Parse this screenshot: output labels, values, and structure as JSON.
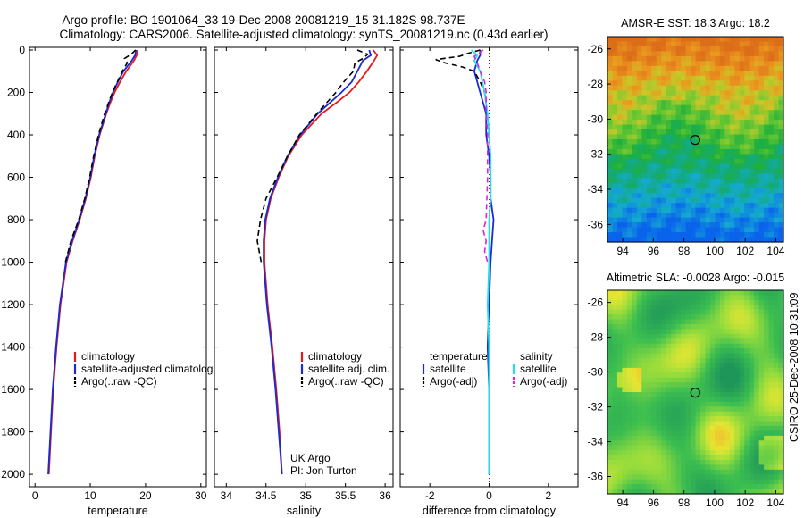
{
  "title_line1": "Argo profile: BO 1901064_33 19-Dec-2008 20081219_15 31.182S 98.737E",
  "title_line2": "Climatology: CARS2006. Satellite-adjusted climatology: synTS_20081219.nc (0.43d earlier)",
  "side_label": "CSIRO 25-Dec-2008 10:31:09",
  "colors": {
    "climatology": "#e41a1c",
    "satellite": "#1a2bd6",
    "argo": "#000000",
    "salinity_satellite": "#22e0e8",
    "salinity_argo": "#e020e0"
  },
  "chart_data": [
    {
      "type": "line",
      "xlabel": "temperature",
      "ylabel": "",
      "xlim": [
        -1,
        31
      ],
      "ylim": [
        2050,
        0
      ],
      "xticks": [
        "0",
        "10",
        "20",
        "30"
      ],
      "yticks": [
        "0",
        "200",
        "400",
        "600",
        "800",
        "1000",
        "1200",
        "1400",
        "1600",
        "1800",
        "2000"
      ],
      "legend": [
        "climatology",
        "satellite-adjusted climatolog",
        "Argo(..raw -QC)"
      ],
      "legend_position": "lower-middle",
      "series": [
        {
          "name": "climatology",
          "style": "solid",
          "color_key": "climatology",
          "depth": [
            0,
            25,
            50,
            100,
            150,
            200,
            250,
            300,
            400,
            500,
            600,
            700,
            800,
            900,
            1000,
            1200,
            1400,
            1600,
            1800,
            2000
          ],
          "values": [
            18.6,
            18.4,
            17.9,
            16.5,
            15.4,
            14.4,
            13.6,
            12.9,
            11.7,
            10.8,
            10.1,
            9.2,
            8.1,
            6.8,
            5.7,
            4.6,
            3.9,
            3.3,
            2.9,
            2.5
          ]
        },
        {
          "name": "satellite-adjusted climatology",
          "style": "solid",
          "color_key": "satellite",
          "depth": [
            0,
            25,
            50,
            100,
            150,
            200,
            250,
            300,
            400,
            500,
            600,
            700,
            800,
            900,
            1000,
            1200,
            1400,
            1600,
            1800,
            2000
          ],
          "values": [
            18.3,
            18.1,
            17.5,
            16.0,
            15.0,
            14.1,
            13.4,
            12.8,
            11.6,
            10.7,
            10.0,
            9.1,
            8.0,
            6.7,
            5.6,
            4.5,
            3.8,
            3.2,
            2.8,
            2.4
          ]
        },
        {
          "name": "Argo(..raw -QC)",
          "style": "dashed",
          "color_key": "argo",
          "depth": [
            0,
            20,
            40,
            60,
            100,
            150,
            200,
            300,
            400,
            500,
            600,
            700,
            800,
            900,
            1000
          ],
          "values": [
            18.2,
            17.4,
            16.2,
            16.7,
            15.8,
            14.9,
            14.0,
            12.6,
            11.5,
            10.6,
            9.9,
            9.0,
            7.9,
            6.5,
            5.5
          ]
        }
      ]
    },
    {
      "type": "line",
      "xlabel": "salinity",
      "ylabel": "",
      "xlim": [
        33.85,
        36.1
      ],
      "ylim": [
        2050,
        0
      ],
      "xticks": [
        "34",
        "34.5",
        "35",
        "35.5",
        "36"
      ],
      "legend": [
        "climatology",
        "satellite adj. clim.",
        "Argo(..raw -QC)"
      ],
      "legend_position": "lower-right",
      "annotations": [
        "UK Argo",
        "PI: Jon Turton"
      ],
      "series": [
        {
          "name": "climatology",
          "style": "solid",
          "color_key": "climatology",
          "depth": [
            0,
            25,
            50,
            100,
            150,
            200,
            250,
            300,
            400,
            500,
            600,
            700,
            800,
            900,
            1000,
            1200,
            1400,
            1600,
            1800,
            2000
          ],
          "values": [
            35.85,
            35.9,
            35.86,
            35.77,
            35.67,
            35.55,
            35.38,
            35.2,
            34.95,
            34.78,
            34.66,
            34.56,
            34.5,
            34.48,
            34.48,
            34.52,
            34.58,
            34.63,
            34.67,
            34.7
          ]
        },
        {
          "name": "satellite adj. clim.",
          "style": "solid",
          "color_key": "satellite",
          "depth": [
            0,
            25,
            50,
            100,
            150,
            200,
            250,
            300,
            400,
            500,
            600,
            700,
            800,
            900,
            1000,
            1200,
            1400,
            1600,
            1800,
            2000
          ],
          "values": [
            35.8,
            35.82,
            35.72,
            35.65,
            35.58,
            35.45,
            35.3,
            35.15,
            34.93,
            34.77,
            34.65,
            34.55,
            34.49,
            34.47,
            34.47,
            34.51,
            34.57,
            34.62,
            34.66,
            34.7
          ]
        },
        {
          "name": "Argo(..raw -QC)",
          "style": "dashed",
          "color_key": "argo",
          "depth": [
            0,
            20,
            40,
            60,
            100,
            150,
            200,
            300,
            400,
            500,
            600,
            700,
            800,
            900,
            1000
          ],
          "values": [
            35.65,
            35.78,
            35.72,
            35.62,
            35.6,
            35.48,
            35.38,
            35.14,
            34.92,
            34.77,
            34.64,
            34.5,
            34.43,
            34.39,
            34.44
          ]
        }
      ]
    },
    {
      "type": "line",
      "xlabel": "difference from climatology",
      "ylabel": "",
      "xlim": [
        -3,
        3
      ],
      "ylim": [
        2050,
        0
      ],
      "xticks": [
        "-2",
        "0",
        "2"
      ],
      "legend": [
        "temperature",
        "satellite",
        "Argo(-adj)",
        "salinity",
        "satellite",
        "Argo(-adj)"
      ],
      "legend_position": "lower-middle",
      "series": [
        {
          "name": "satellite",
          "group": "temperature",
          "style": "solid",
          "color_key": "satellite",
          "depth": [
            0,
            25,
            50,
            100,
            200,
            300,
            400,
            500,
            600,
            700,
            800,
            900,
            1000,
            1200,
            1400,
            1600,
            1800,
            2000
          ],
          "values": [
            -0.3,
            -0.3,
            -0.4,
            -0.5,
            -0.3,
            -0.1,
            -0.1,
            0.0,
            0.05,
            0.05,
            0.15,
            0.1,
            0.05,
            0.0,
            -0.05,
            0.0,
            0.0,
            0.0
          ]
        },
        {
          "name": "Argo(-adj)",
          "group": "temperature",
          "style": "dashed",
          "color_key": "argo",
          "depth": [
            0,
            15,
            30,
            45,
            60,
            80,
            100,
            150,
            200,
            250
          ],
          "values": [
            -0.3,
            -0.7,
            -1.0,
            -1.8,
            -1.5,
            -0.9,
            -0.5,
            -0.3,
            -0.15,
            -0.1
          ]
        },
        {
          "name": "satellite",
          "group": "salinity",
          "style": "solid",
          "color_key": "salinity_satellite",
          "depth": [
            0,
            25,
            50,
            100,
            200,
            300,
            400,
            500,
            600,
            700,
            800,
            900,
            1000,
            1200,
            1400,
            1600,
            1800,
            2000
          ],
          "values": [
            -0.6,
            -0.4,
            -0.5,
            -0.3,
            -0.15,
            -0.05,
            0.0,
            0.05,
            0.05,
            0.05,
            0.0,
            0.0,
            0.0,
            -0.05,
            0.0,
            0.0,
            0.0,
            0.0
          ]
        },
        {
          "name": "Argo(-adj)",
          "group": "salinity",
          "style": "dashed",
          "color_key": "salinity_argo",
          "depth": [
            0,
            30,
            60,
            100,
            150,
            200,
            300,
            400,
            600,
            800,
            850,
            900,
            950,
            1000
          ],
          "values": [
            -0.2,
            -0.5,
            -0.4,
            -0.3,
            -0.15,
            -0.1,
            -0.1,
            -0.05,
            -0.05,
            -0.1,
            -0.2,
            -0.1,
            -0.15,
            -0.05
          ]
        }
      ]
    },
    {
      "type": "heatmap",
      "title": "AMSR-E SST: 18.3 Argo: 18.2",
      "xlim": [
        93,
        104.5
      ],
      "ylim": [
        -37,
        -25.3
      ],
      "xticks": [
        "94",
        "96",
        "98",
        "100",
        "102",
        "104"
      ],
      "yticks": [
        "-26",
        "-28",
        "-30",
        "-32",
        "-34",
        "-36"
      ],
      "marker": {
        "lon": 98.737,
        "lat": -31.182
      }
    },
    {
      "type": "heatmap",
      "title": "Altimetric SLA: -0.0028 Argo: -0.015",
      "xlim": [
        93,
        104.5
      ],
      "ylim": [
        -37,
        -25.3
      ],
      "xticks": [
        "94",
        "96",
        "98",
        "100",
        "102",
        "104"
      ],
      "yticks": [
        "-26",
        "-28",
        "-30",
        "-32",
        "-34",
        "-36"
      ],
      "marker": {
        "lon": 98.737,
        "lat": -31.182
      }
    }
  ]
}
